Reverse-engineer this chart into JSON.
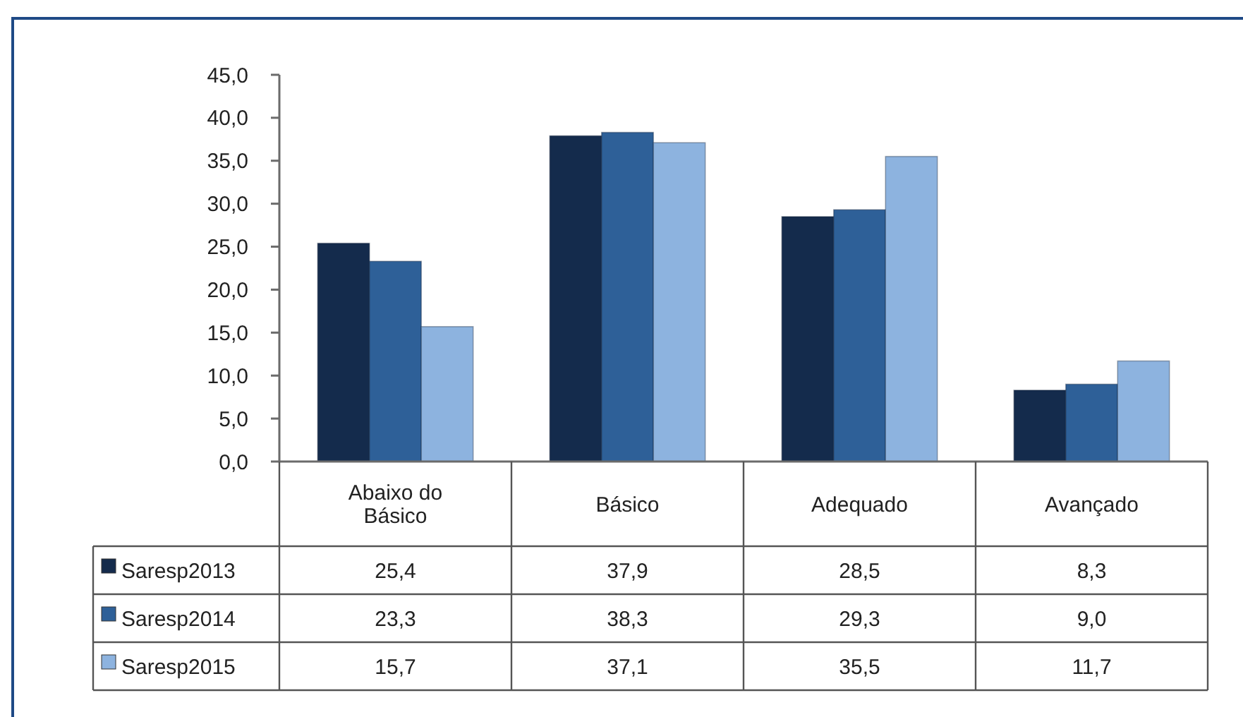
{
  "chart_data": {
    "type": "bar",
    "categories": [
      "Abaixo do Básico",
      "Básico",
      "Adequado",
      "Avançado"
    ],
    "series": [
      {
        "name": "Saresp2013",
        "color": "#142b4c",
        "values": [
          25.4,
          37.9,
          28.5,
          8.3
        ],
        "value_labels": [
          "25,4",
          "37,9",
          "28,5",
          "8,3"
        ]
      },
      {
        "name": "Saresp2014",
        "color": "#2e6098",
        "values": [
          23.3,
          38.3,
          29.3,
          9.0
        ],
        "value_labels": [
          "23,3",
          "38,3",
          "29,3",
          "9,0"
        ]
      },
      {
        "name": "Saresp2015",
        "color": "#8db3df",
        "values": [
          15.7,
          37.1,
          35.5,
          11.7
        ],
        "value_labels": [
          "15,7",
          "37,1",
          "35,5",
          "11,7"
        ]
      }
    ],
    "ylim": [
      0,
      45
    ],
    "yticks": [
      {
        "value": 0,
        "label": "0,0"
      },
      {
        "value": 5,
        "label": "5,0"
      },
      {
        "value": 10,
        "label": "10,0"
      },
      {
        "value": 15,
        "label": "15,0"
      },
      {
        "value": 20,
        "label": "20,0"
      },
      {
        "value": 25,
        "label": "25,0"
      },
      {
        "value": 30,
        "label": "30,0"
      },
      {
        "value": 35,
        "label": "35,0"
      },
      {
        "value": 40,
        "label": "40,0"
      },
      {
        "value": 45,
        "label": "45,0"
      }
    ],
    "legend": "bottom"
  }
}
